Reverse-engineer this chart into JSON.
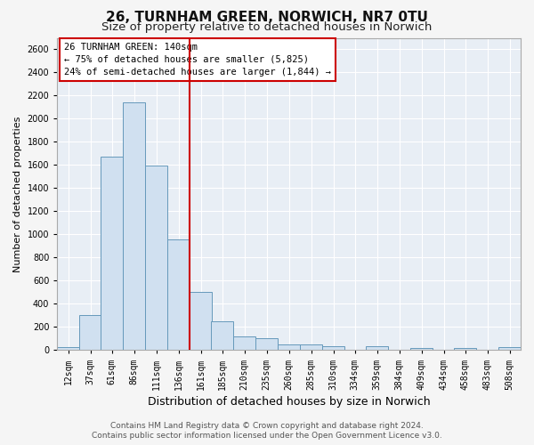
{
  "title": "26, TURNHAM GREEN, NORWICH, NR7 0TU",
  "subtitle": "Size of property relative to detached houses in Norwich",
  "xlabel": "Distribution of detached houses by size in Norwich",
  "ylabel": "Number of detached properties",
  "footer_line1": "Contains HM Land Registry data © Crown copyright and database right 2024.",
  "footer_line2": "Contains public sector information licensed under the Open Government Licence v3.0.",
  "annotation_line1": "26 TURNHAM GREEN: 140sqm",
  "annotation_line2": "← 75% of detached houses are smaller (5,825)",
  "annotation_line3": "24% of semi-detached houses are larger (1,844) →",
  "bar_face_color": "#d0e0f0",
  "bar_edge_color": "#6699bb",
  "vline_color": "#cc0000",
  "categories": [
    "12sqm",
    "37sqm",
    "61sqm",
    "86sqm",
    "111sqm",
    "136sqm",
    "161sqm",
    "185sqm",
    "210sqm",
    "235sqm",
    "260sqm",
    "285sqm",
    "310sqm",
    "334sqm",
    "359sqm",
    "384sqm",
    "409sqm",
    "434sqm",
    "458sqm",
    "483sqm",
    "508sqm"
  ],
  "bin_starts": [
    12,
    37,
    61,
    86,
    111,
    136,
    161,
    185,
    210,
    235,
    260,
    285,
    310,
    334,
    359,
    384,
    409,
    434,
    458,
    483,
    508
  ],
  "bin_width": 25,
  "values": [
    25,
    300,
    1670,
    2140,
    1595,
    960,
    505,
    250,
    120,
    100,
    50,
    50,
    35,
    5,
    35,
    5,
    20,
    5,
    20,
    5,
    25
  ],
  "vline_xindex": 5,
  "ylim_max": 2700,
  "yticks": [
    0,
    200,
    400,
    600,
    800,
    1000,
    1200,
    1400,
    1600,
    1800,
    2000,
    2200,
    2400,
    2600
  ],
  "plot_bg": "#e8eef5",
  "fig_bg": "#f5f5f5",
  "grid_color": "#ffffff",
  "title_fontsize": 11,
  "subtitle_fontsize": 9.5,
  "xlabel_fontsize": 9,
  "ylabel_fontsize": 8,
  "tick_fontsize": 7,
  "annot_fontsize": 7.5,
  "footer_fontsize": 6.5
}
